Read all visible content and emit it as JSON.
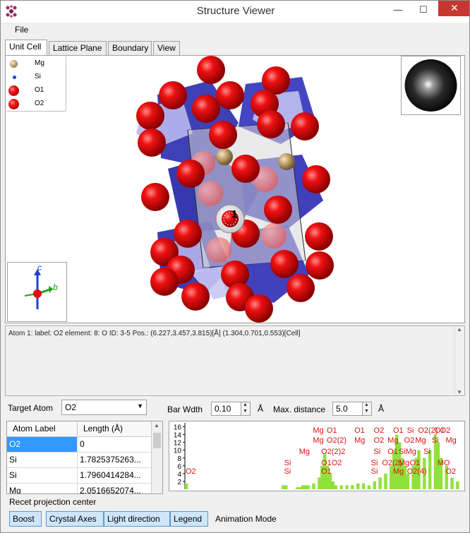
{
  "window": {
    "title": "Structure Viewer",
    "minimize": "—",
    "maximize": "☐",
    "close": "✕"
  },
  "menu": {
    "file": "File"
  },
  "tabs": [
    {
      "label": "Unit Cell"
    },
    {
      "label": "Lattice Plane"
    },
    {
      "label": "Boundary"
    },
    {
      "label": "View"
    }
  ],
  "legend": [
    {
      "label": "Mg",
      "color": "#c8ad7f"
    },
    {
      "label": "Si",
      "color": "#1b3fd6"
    },
    {
      "label": "O1",
      "color": "#e31010"
    },
    {
      "label": "O2",
      "color": "#e31010"
    }
  ],
  "viewer": {
    "selected_atom_marker": "1",
    "axes": {
      "c": "c",
      "b": "b"
    }
  },
  "info": {
    "text": "Atom 1:  label: O2    element: 8: O  ID: 3-5  Pos.: (6.227,3.457,3.815)[Å] (1.304,0.701,0.553)[Cell]"
  },
  "controls": {
    "target_atom_label": "Target Atom",
    "target_atom_value": "O2",
    "bar_width_label": "Bar Wdth",
    "bar_width_value": "0.10",
    "bar_width_unit": "Å",
    "max_distance_label": "Max. distance",
    "max_distance_value": "5.0",
    "max_distance_unit": "Å"
  },
  "table": {
    "headers": [
      "Atom Label",
      "Length (Å)"
    ],
    "rows": [
      {
        "label": "O2",
        "length": "0"
      },
      {
        "label": "Si",
        "length": "1.7825375263..."
      },
      {
        "label": "Si",
        "length": "1.7960414284..."
      },
      {
        "label": "Mg",
        "length": "2.0516652074..."
      }
    ]
  },
  "chart_data": {
    "type": "bar",
    "yticks": [
      "16",
      "14",
      "12",
      "10",
      "8",
      "6",
      "4",
      "2"
    ],
    "ylim": [
      0,
      17
    ],
    "xlim": [
      0,
      5.0
    ],
    "bars": [
      {
        "x": 0.0,
        "y": 1.5
      },
      {
        "x": 1.75,
        "y": 1
      },
      {
        "x": 1.8,
        "y": 1
      },
      {
        "x": 2.0,
        "y": 0.5
      },
      {
        "x": 2.05,
        "y": 0.5
      },
      {
        "x": 2.1,
        "y": 1
      },
      {
        "x": 2.15,
        "y": 1
      },
      {
        "x": 2.2,
        "y": 1
      },
      {
        "x": 2.3,
        "y": 1.5
      },
      {
        "x": 2.4,
        "y": 3
      },
      {
        "x": 2.45,
        "y": 6
      },
      {
        "x": 2.5,
        "y": 9
      },
      {
        "x": 2.55,
        "y": 6
      },
      {
        "x": 2.6,
        "y": 4
      },
      {
        "x": 2.65,
        "y": 2
      },
      {
        "x": 2.7,
        "y": 1
      },
      {
        "x": 2.8,
        "y": 1
      },
      {
        "x": 2.9,
        "y": 1
      },
      {
        "x": 3.0,
        "y": 1
      },
      {
        "x": 3.1,
        "y": 1.5
      },
      {
        "x": 3.2,
        "y": 1.5
      },
      {
        "x": 3.3,
        "y": 1
      },
      {
        "x": 3.4,
        "y": 2
      },
      {
        "x": 3.5,
        "y": 3
      },
      {
        "x": 3.6,
        "y": 4
      },
      {
        "x": 3.7,
        "y": 6
      },
      {
        "x": 3.75,
        "y": 10
      },
      {
        "x": 3.8,
        "y": 14
      },
      {
        "x": 3.85,
        "y": 12
      },
      {
        "x": 3.9,
        "y": 8
      },
      {
        "x": 3.95,
        "y": 6
      },
      {
        "x": 4.0,
        "y": 4
      },
      {
        "x": 4.1,
        "y": 6
      },
      {
        "x": 4.15,
        "y": 8
      },
      {
        "x": 4.2,
        "y": 10
      },
      {
        "x": 4.3,
        "y": 8
      },
      {
        "x": 4.4,
        "y": 10
      },
      {
        "x": 4.5,
        "y": 14
      },
      {
        "x": 4.55,
        "y": 12
      },
      {
        "x": 4.6,
        "y": 8
      },
      {
        "x": 4.7,
        "y": 6
      },
      {
        "x": 4.8,
        "y": 3
      },
      {
        "x": 4.9,
        "y": 2
      }
    ],
    "labels": [
      {
        "text": "O2",
        "x": 0.0,
        "row": 0
      },
      {
        "text": "Si",
        "x": 1.78,
        "row": 0
      },
      {
        "text": "Si",
        "x": 1.78,
        "row": 1
      },
      {
        "text": "O1",
        "x": 2.45,
        "row": 0
      },
      {
        "text": "O1O2",
        "x": 2.45,
        "row": 1
      },
      {
        "text": "Mg",
        "x": 2.05,
        "row": 2
      },
      {
        "text": "O2(2)2",
        "x": 2.45,
        "row": 2
      },
      {
        "text": "Mg",
        "x": 2.3,
        "row": 3
      },
      {
        "text": "O2(2)",
        "x": 2.55,
        "row": 3
      },
      {
        "text": "Mg",
        "x": 2.3,
        "row": 4
      },
      {
        "text": "O1",
        "x": 2.55,
        "row": 4
      },
      {
        "text": "Mg",
        "x": 3.05,
        "row": 3
      },
      {
        "text": "O1",
        "x": 3.05,
        "row": 4
      },
      {
        "text": "O2",
        "x": 3.4,
        "row": 4
      },
      {
        "text": "Si",
        "x": 3.35,
        "row": 0
      },
      {
        "text": "Si",
        "x": 3.35,
        "row": 1
      },
      {
        "text": "O2(2)",
        "x": 3.55,
        "row": 1
      },
      {
        "text": "O2",
        "x": 3.4,
        "row": 3
      },
      {
        "text": "Si",
        "x": 3.4,
        "row": 2
      },
      {
        "text": "O1",
        "x": 3.65,
        "row": 2
      },
      {
        "text": "Mg",
        "x": 3.65,
        "row": 3
      },
      {
        "text": "O2",
        "x": 3.95,
        "row": 3
      },
      {
        "text": "O1",
        "x": 3.75,
        "row": 4
      },
      {
        "text": "Si",
        "x": 4.0,
        "row": 4
      },
      {
        "text": "Mg",
        "x": 3.75,
        "row": 0
      },
      {
        "text": "O2(4)",
        "x": 4.0,
        "row": 0
      },
      {
        "text": "Mg",
        "x": 3.85,
        "row": 1
      },
      {
        "text": "O1",
        "x": 4.05,
        "row": 1
      },
      {
        "text": "SiMg",
        "x": 3.85,
        "row": 2
      },
      {
        "text": "Si",
        "x": 4.3,
        "row": 2
      },
      {
        "text": "O2(2)",
        "x": 4.2,
        "row": 4
      },
      {
        "text": "O1",
        "x": 4.5,
        "row": 4
      },
      {
        "text": "Mg",
        "x": 4.15,
        "row": 3
      },
      {
        "text": "Si",
        "x": 4.45,
        "row": 3
      },
      {
        "text": "O2",
        "x": 4.6,
        "row": 4
      },
      {
        "text": "MO",
        "x": 4.55,
        "row": 1
      },
      {
        "text": "O2",
        "x": 4.7,
        "row": 0
      },
      {
        "text": "Mg",
        "x": 4.7,
        "row": 3
      }
    ]
  },
  "status": {
    "text": "Recet projection center"
  },
  "toolbar": {
    "boost": "Boost",
    "crystal_axes": "Crystal Axes",
    "light_direction": "Light direction",
    "legend": "Legend",
    "animation_mode": "Animation Mode"
  }
}
